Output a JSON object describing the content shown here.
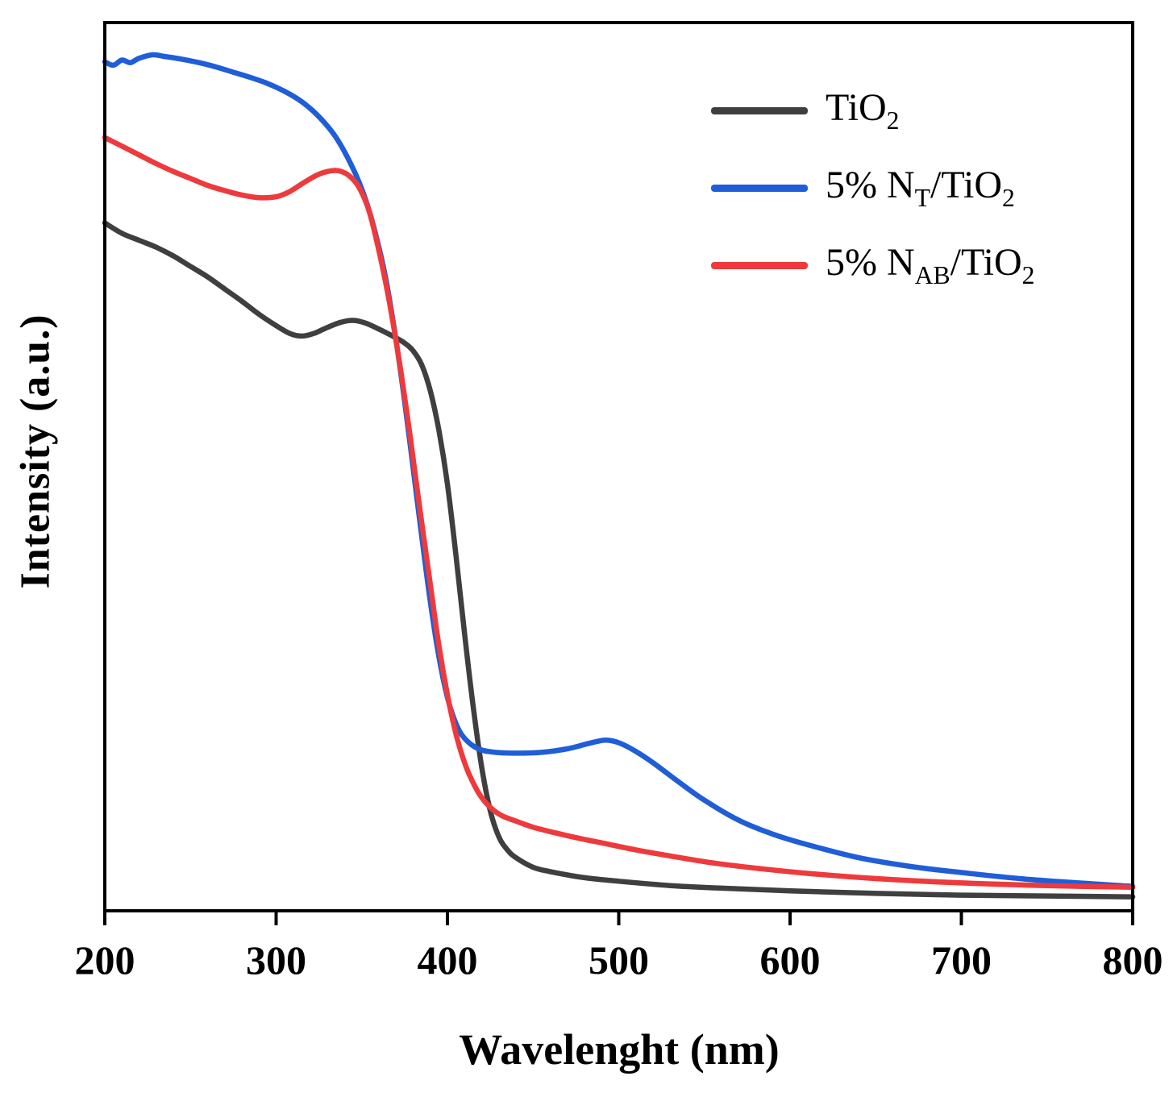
{
  "figure": {
    "xlabel": "Wavelenght (nm)",
    "ylabel": "Intensity (a.u.)"
  },
  "chart_data": {
    "type": "line",
    "title": "",
    "xlabel": "Wavelenght (nm)",
    "ylabel": "Intensity (a.u.)",
    "xlim": [
      200,
      800
    ],
    "ylim": [
      0,
      1.02
    ],
    "x_ticks": [
      200,
      300,
      400,
      500,
      600,
      700,
      800
    ],
    "y_ticks": [],
    "grid": false,
    "frame": true,
    "legend_position": "upper-right",
    "axis_color": "#000000",
    "series": [
      {
        "name": "TiO2",
        "label_segments": [
          {
            "text": "TiO"
          },
          {
            "text": "2",
            "sub": true
          }
        ],
        "color": "#3f3f3f",
        "x": [
          200,
          210,
          220,
          230,
          240,
          250,
          260,
          270,
          280,
          290,
          300,
          308,
          315,
          322,
          330,
          338,
          345,
          352,
          360,
          368,
          375,
          380,
          385,
          390,
          395,
          400,
          405,
          410,
          415,
          420,
          425,
          430,
          435,
          440,
          450,
          460,
          480,
          500,
          530,
          560,
          600,
          650,
          700,
          750,
          800
        ],
        "y": [
          0.79,
          0.778,
          0.77,
          0.762,
          0.752,
          0.74,
          0.728,
          0.714,
          0.7,
          0.685,
          0.672,
          0.663,
          0.66,
          0.663,
          0.67,
          0.676,
          0.678,
          0.675,
          0.668,
          0.66,
          0.652,
          0.643,
          0.627,
          0.597,
          0.552,
          0.49,
          0.408,
          0.318,
          0.235,
          0.165,
          0.115,
          0.085,
          0.07,
          0.061,
          0.05,
          0.045,
          0.038,
          0.034,
          0.029,
          0.026,
          0.023,
          0.02,
          0.018,
          0.017,
          0.016
        ]
      },
      {
        "name": "5% NT/TiO2",
        "label_segments": [
          {
            "text": "5% N"
          },
          {
            "text": "T",
            "sub": true
          },
          {
            "text": "/TiO"
          },
          {
            "text": "2",
            "sub": true
          }
        ],
        "color": "#1f5ed8",
        "x": [
          200,
          205,
          210,
          215,
          220,
          228,
          235,
          245,
          255,
          265,
          275,
          285,
          295,
          305,
          315,
          325,
          335,
          345,
          352,
          358,
          364,
          370,
          375,
          380,
          385,
          390,
          395,
          400,
          405,
          410,
          418,
          428,
          440,
          455,
          470,
          482,
          492,
          500,
          510,
          520,
          535,
          550,
          570,
          590,
          610,
          640,
          670,
          700,
          740,
          800
        ],
        "y": [
          0.975,
          0.971,
          0.977,
          0.974,
          0.979,
          0.983,
          0.981,
          0.978,
          0.974,
          0.969,
          0.963,
          0.957,
          0.95,
          0.941,
          0.929,
          0.912,
          0.888,
          0.852,
          0.818,
          0.778,
          0.726,
          0.655,
          0.585,
          0.508,
          0.43,
          0.355,
          0.292,
          0.245,
          0.215,
          0.198,
          0.186,
          0.182,
          0.181,
          0.182,
          0.186,
          0.192,
          0.196,
          0.193,
          0.183,
          0.17,
          0.148,
          0.127,
          0.104,
          0.088,
          0.076,
          0.061,
          0.051,
          0.044,
          0.036,
          0.028
        ]
      },
      {
        "name": "5% NAB/TiO2",
        "label_segments": [
          {
            "text": "5% N"
          },
          {
            "text": "AB",
            "sub": true
          },
          {
            "text": "/TiO"
          },
          {
            "text": "2",
            "sub": true
          }
        ],
        "color": "#ee3a3c",
        "x": [
          200,
          210,
          220,
          230,
          240,
          250,
          260,
          270,
          280,
          290,
          300,
          308,
          316,
          324,
          330,
          336,
          342,
          348,
          354,
          360,
          366,
          372,
          378,
          384,
          390,
          395,
          400,
          405,
          410,
          415,
          420,
          426,
          432,
          440,
          450,
          462,
          475,
          490,
          510,
          530,
          555,
          580,
          610,
          650,
          700,
          750,
          800
        ],
        "y": [
          0.888,
          0.878,
          0.868,
          0.858,
          0.849,
          0.841,
          0.833,
          0.827,
          0.822,
          0.819,
          0.82,
          0.826,
          0.836,
          0.845,
          0.849,
          0.85,
          0.845,
          0.832,
          0.805,
          0.758,
          0.7,
          0.63,
          0.548,
          0.46,
          0.375,
          0.305,
          0.248,
          0.203,
          0.17,
          0.147,
          0.13,
          0.117,
          0.109,
          0.103,
          0.096,
          0.09,
          0.084,
          0.078,
          0.07,
          0.063,
          0.055,
          0.049,
          0.043,
          0.037,
          0.032,
          0.029,
          0.027
        ]
      }
    ]
  }
}
